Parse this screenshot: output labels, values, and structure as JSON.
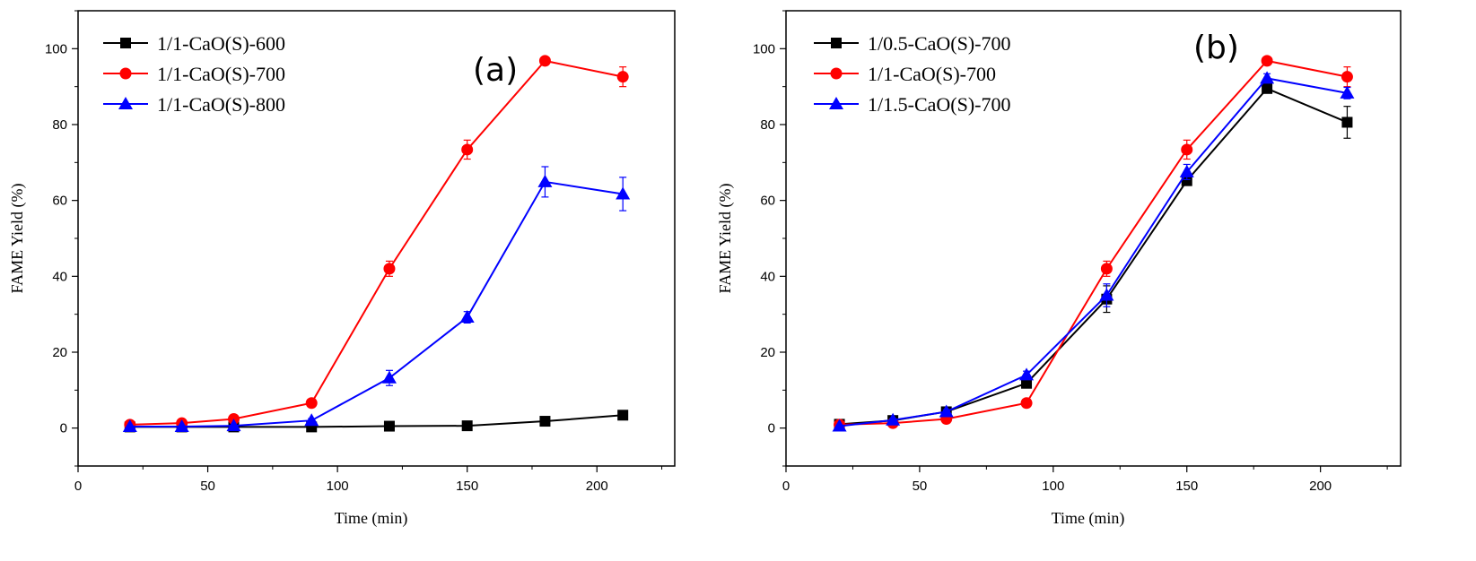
{
  "chart_data": [
    {
      "type": "line",
      "panel_label": "(a)",
      "xlabel": "Time (min)",
      "ylabel": "FAME Yield (%)",
      "xlim": [
        0,
        230
      ],
      "ylim": [
        -10,
        110
      ],
      "xticks": [
        "0",
        "50",
        "100",
        "150",
        "200"
      ],
      "yticks": [
        "0",
        "20",
        "40",
        "60",
        "80",
        "100"
      ],
      "legend_position": "top-left",
      "x": [
        20,
        40,
        60,
        90,
        120,
        150,
        180,
        210
      ],
      "series": [
        {
          "name": "1/1-CaO(S)-600",
          "color": "#000000",
          "marker": "square",
          "values": [
            0.3,
            0.3,
            0.3,
            0.3,
            0.5,
            0.6,
            1.8,
            3.4
          ],
          "errors": [
            0.2,
            0.2,
            0.2,
            0.2,
            0.3,
            0.3,
            0.4,
            0.5
          ]
        },
        {
          "name": "1/1-CaO(S)-700",
          "color": "#ff0000",
          "marker": "circle",
          "values": [
            0.9,
            1.3,
            2.4,
            6.6,
            42.0,
            73.4,
            96.8,
            92.6
          ],
          "errors": [
            0.3,
            0.3,
            0.4,
            0.6,
            2.0,
            2.5,
            0.8,
            2.6
          ]
        },
        {
          "name": "1/1-CaO(S)-800",
          "color": "#0000ff",
          "marker": "triangle",
          "values": [
            0.4,
            0.4,
            0.6,
            2.0,
            13.2,
            29.2,
            64.9,
            61.7
          ],
          "errors": [
            0.2,
            0.2,
            0.2,
            0.5,
            2.0,
            1.5,
            4.0,
            4.4
          ]
        }
      ]
    },
    {
      "type": "line",
      "panel_label": "(b)",
      "xlabel": "Time (min)",
      "ylabel": "FAME Yield (%)",
      "xlim": [
        0,
        230
      ],
      "ylim": [
        -10,
        110
      ],
      "xticks": [
        "0",
        "50",
        "100",
        "150",
        "200"
      ],
      "yticks": [
        "0",
        "20",
        "40",
        "60",
        "80",
        "100"
      ],
      "legend_position": "top-left",
      "x": [
        20,
        40,
        60,
        90,
        120,
        150,
        180,
        210
      ],
      "series": [
        {
          "name": "1/0.5-CaO(S)-700",
          "color": "#000000",
          "marker": "square",
          "values": [
            1.0,
            2.0,
            4.3,
            11.8,
            34.0,
            65.2,
            89.5,
            80.6
          ],
          "errors": [
            1.0,
            0.8,
            0.8,
            1.0,
            3.5,
            1.0,
            1.2,
            4.2
          ]
        },
        {
          "name": "1/1-CaO(S)-700",
          "color": "#ff0000",
          "marker": "circle",
          "values": [
            0.9,
            1.3,
            2.4,
            6.6,
            42.0,
            73.4,
            96.8,
            92.6
          ],
          "errors": [
            0.4,
            0.4,
            0.4,
            0.6,
            2.0,
            2.5,
            0.8,
            2.6
          ]
        },
        {
          "name": "1/1.5-CaO(S)-700",
          "color": "#0000ff",
          "marker": "triangle",
          "values": [
            0.5,
            2.1,
            4.3,
            14.0,
            35.0,
            67.5,
            92.2,
            88.3
          ],
          "errors": [
            0.3,
            0.4,
            0.5,
            1.0,
            3.0,
            2.0,
            1.2,
            1.5
          ]
        }
      ]
    }
  ]
}
